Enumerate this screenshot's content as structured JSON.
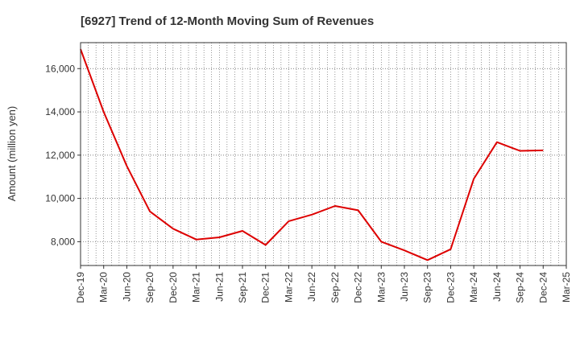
{
  "chart_data": {
    "type": "line",
    "title": "[6927]  Trend of 12-Month Moving Sum of Revenues",
    "xlabel": "",
    "ylabel": "Amount (million yen)",
    "ylim": [
      6900,
      17200
    ],
    "y_ticks": [
      8000,
      10000,
      12000,
      14000,
      16000
    ],
    "y_tick_labels": [
      "8,000",
      "10,000",
      "12,000",
      "14,000",
      "16,000"
    ],
    "x_tick_labels": [
      "Dec-19",
      "Mar-20",
      "Jun-20",
      "Sep-20",
      "Dec-20",
      "Mar-21",
      "Jun-21",
      "Sep-21",
      "Dec-21",
      "Mar-22",
      "Jun-22",
      "Sep-22",
      "Dec-22",
      "Mar-23",
      "Jun-23",
      "Sep-23",
      "Dec-23",
      "Mar-24",
      "Jun-24",
      "Sep-24",
      "Dec-24",
      "Mar-25"
    ],
    "x_range_months": [
      "Dec-19",
      "Mar-25"
    ],
    "grid": true,
    "colors": {
      "line": "#dd0000",
      "grid": "#555555",
      "axis": "#333333"
    },
    "series": [
      {
        "name": "",
        "x": [
          "Dec-19",
          "Mar-20",
          "Jun-20",
          "Sep-20",
          "Dec-20",
          "Mar-21",
          "Jun-21",
          "Sep-21",
          "Dec-21",
          "Mar-22",
          "Jun-22",
          "Sep-22",
          "Dec-22",
          "Mar-23",
          "Jun-23",
          "Sep-23",
          "Dec-23",
          "Mar-24",
          "Jun-24",
          "Sep-24",
          "Dec-24"
        ],
        "values": [
          16900,
          14000,
          11500,
          9400,
          8600,
          8100,
          8200,
          8500,
          7850,
          8950,
          9250,
          9650,
          9450,
          8000,
          7600,
          7150,
          7650,
          10900,
          12600,
          12200,
          12220
        ]
      }
    ]
  }
}
